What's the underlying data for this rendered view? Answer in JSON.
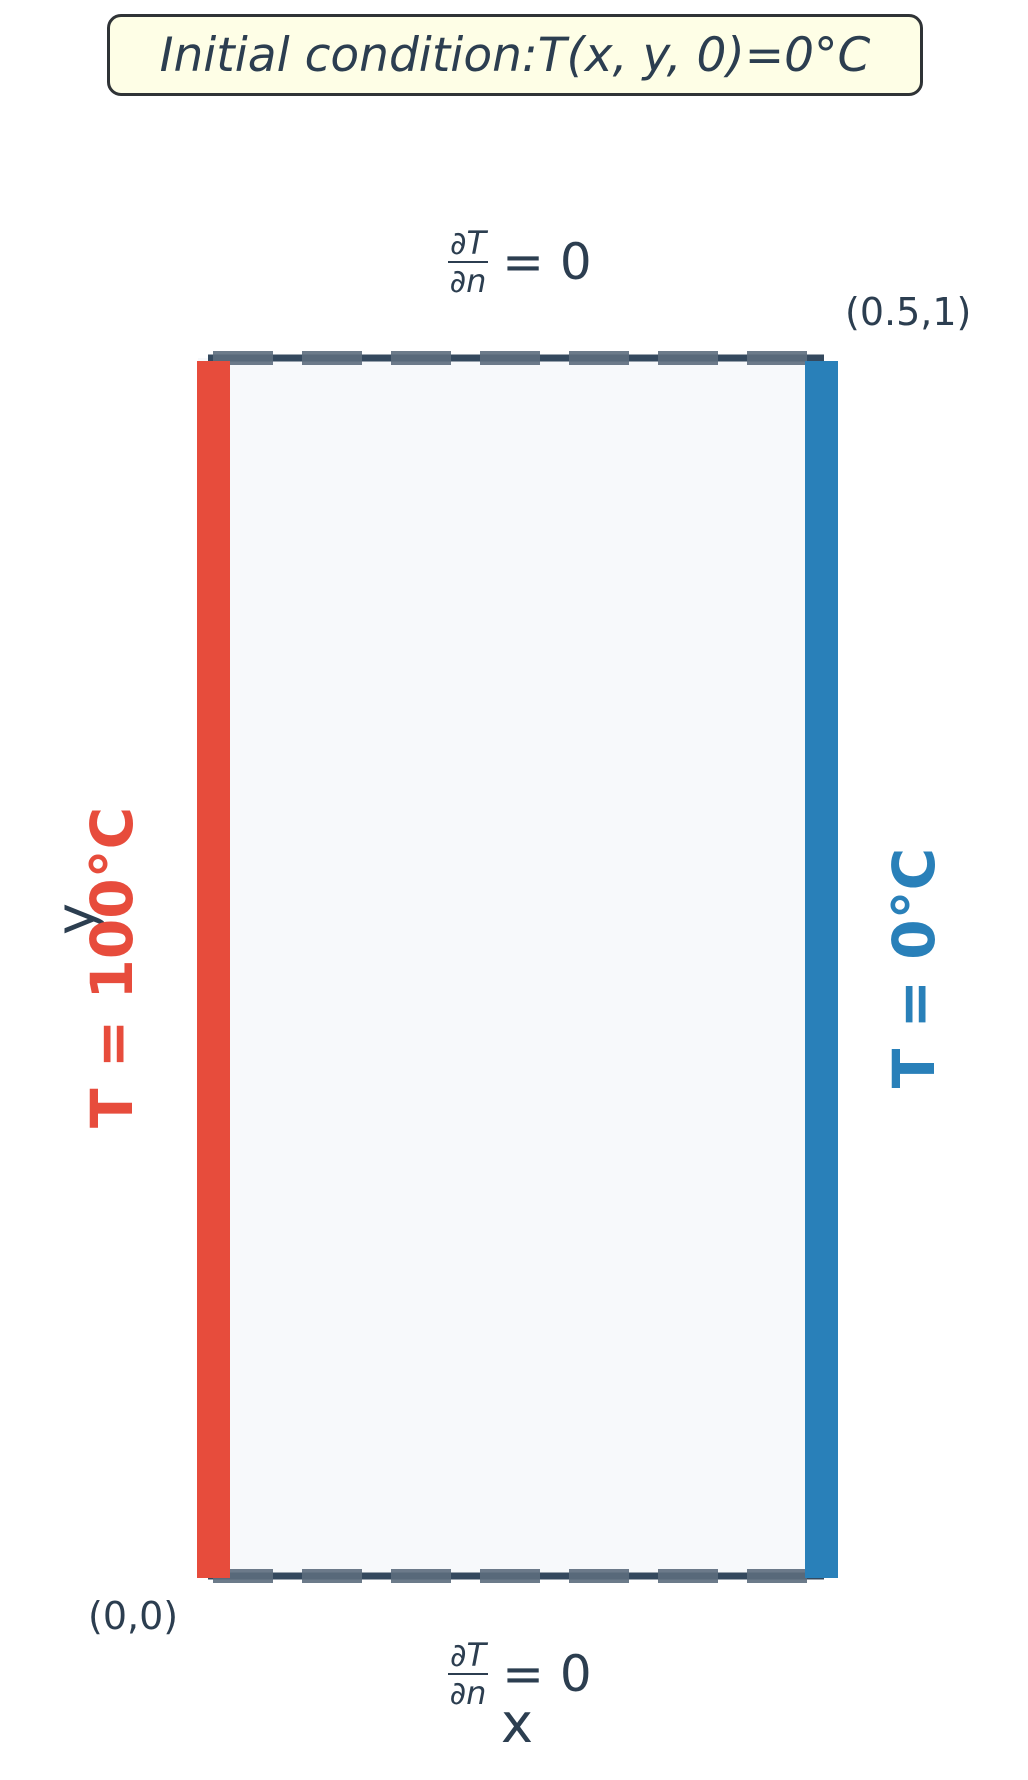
{
  "title": {
    "prefix": "Initial condition: ",
    "expr_math": "T(x, y, 0)",
    "equals": " = ",
    "value": "0°C"
  },
  "boundaries": {
    "left": {
      "label": "T = 100°C",
      "color": "#e74c3c"
    },
    "right": {
      "label": "T = 0°C",
      "color": "#2980b9"
    },
    "top": {
      "num": "∂T",
      "den": "∂n",
      "rhs": "= 0"
    },
    "bottom": {
      "num": "∂T",
      "den": "∂n",
      "rhs": "= 0"
    }
  },
  "corners": {
    "origin": "(0,0)",
    "far": "(0.5,1)"
  },
  "axes": {
    "x": "x",
    "y": "y"
  },
  "colors": {
    "domain_fill": "#f7f9fb",
    "edge": "#34495e",
    "dash": "#5d6d7e",
    "text": "#2c3e50",
    "title_bg": "#fefee6"
  }
}
